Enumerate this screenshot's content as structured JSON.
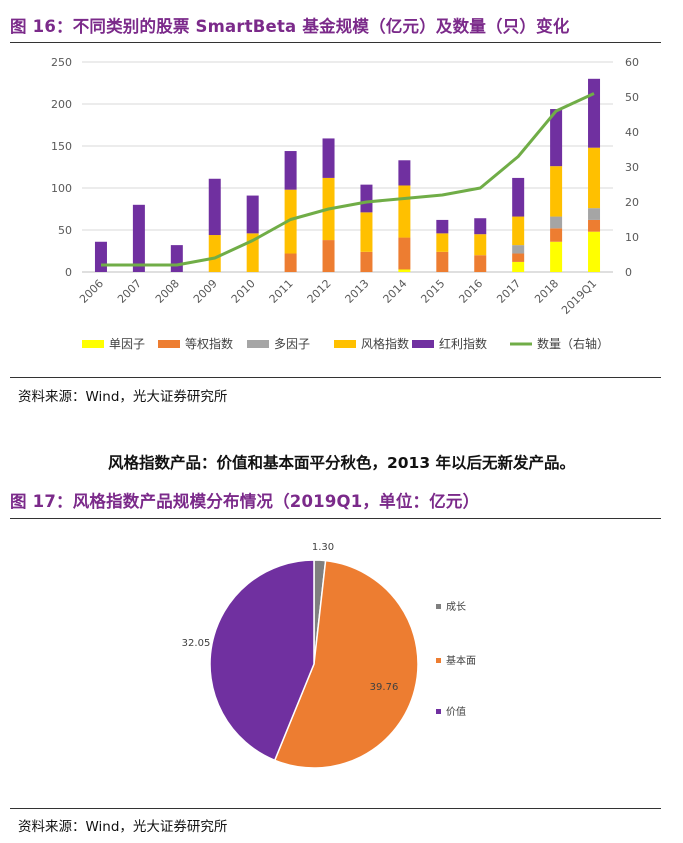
{
  "figure16": {
    "title": "图 16：不同类别的股票 SmartBeta 基金规模（亿元）及数量（只）变化",
    "source": "资料来源：Wind，光大证券研究所"
  },
  "summary": "风格指数产品：价值和基本面平分秋色，2013 年以后无新发产品。",
  "figure17": {
    "title": "图 17：风格指数产品规模分布情况（2019Q1，单位：亿元）",
    "source": "资料来源：Wind，光大证券研究所"
  },
  "colors": {
    "title": "#7b2a8a",
    "single_factor": "#ffff00",
    "equal_weight": "#ed7d31",
    "multi_factor": "#a5a5a5",
    "style_index": "#ffc000",
    "dividend_index": "#7030a0",
    "count_line": "#70ad47",
    "pie_growth": "#7f7f7f",
    "pie_fundamental": "#ed7d31",
    "pie_value": "#7030a0"
  },
  "chart_data": [
    {
      "type": "bar",
      "stacked": true,
      "categories": [
        "2006",
        "2007",
        "2008",
        "2009",
        "2010",
        "2011",
        "2012",
        "2013",
        "2014",
        "2015",
        "2016",
        "2017",
        "2018",
        "2019Q1"
      ],
      "series": [
        {
          "name": "单因子",
          "color": "#ffff00",
          "values": [
            0,
            0,
            0,
            0,
            0,
            0,
            0,
            0,
            3,
            0,
            0,
            12,
            36,
            48
          ]
        },
        {
          "name": "等权指数",
          "color": "#ed7d31",
          "values": [
            0,
            0,
            0,
            0,
            0,
            22,
            38,
            24,
            38,
            24,
            20,
            10,
            16,
            14
          ]
        },
        {
          "name": "多因子",
          "color": "#a5a5a5",
          "values": [
            0,
            0,
            0,
            0,
            0,
            0,
            0,
            0,
            0,
            0,
            0,
            10,
            14,
            14
          ]
        },
        {
          "name": "风格指数",
          "color": "#ffc000",
          "values": [
            0,
            0,
            0,
            44,
            46,
            76,
            74,
            47,
            62,
            22,
            25,
            34,
            60,
            72
          ]
        },
        {
          "name": "红利指数",
          "color": "#7030a0",
          "values": [
            36,
            80,
            32,
            67,
            45,
            46,
            47,
            33,
            30,
            16,
            19,
            46,
            68,
            82
          ]
        }
      ],
      "line": {
        "name": "数量（右轴）",
        "color": "#70ad47",
        "axis": "right",
        "values": [
          2,
          2,
          2,
          4,
          9,
          15,
          18,
          20,
          21,
          22,
          24,
          33,
          46,
          51
        ]
      },
      "ylim": [
        0,
        250
      ],
      "yticks": [
        0,
        50,
        100,
        150,
        200,
        250
      ],
      "y2lim": [
        0,
        60
      ],
      "y2ticks": [
        0,
        10,
        20,
        30,
        40,
        50,
        60
      ],
      "legend": "bottom",
      "grid": true
    },
    {
      "type": "pie",
      "labels": [
        "成长",
        "基本面",
        "价值"
      ],
      "values": [
        1.3,
        39.76,
        32.05
      ],
      "value_labels": [
        "1.30",
        "39.76",
        "32.05"
      ],
      "colors": [
        "#7f7f7f",
        "#ed7d31",
        "#7030a0"
      ],
      "legend": "right"
    }
  ]
}
